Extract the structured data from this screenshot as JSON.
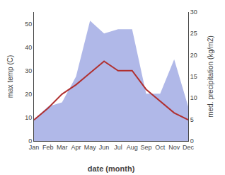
{
  "chart_data": {
    "type": "line",
    "categories": [
      "Jan",
      "Feb",
      "Mar",
      "Apr",
      "May",
      "Jun",
      "Jul",
      "Aug",
      "Sep",
      "Oct",
      "Nov",
      "Dec"
    ],
    "series": [
      {
        "type": "area",
        "color": "#b0b8e8",
        "axis": "y2",
        "values": [
          5,
          8,
          9,
          15,
          28,
          25,
          26,
          26,
          11,
          11,
          19,
          8
        ]
      },
      {
        "type": "line",
        "color": "#b03030",
        "values": [
          9,
          14,
          20,
          24,
          29,
          34,
          30,
          30,
          22,
          17,
          12,
          9
        ]
      }
    ],
    "xlabel": "date (month)",
    "ylabel": "max temp (C)",
    "y2label": "med. precipitation (kg/m2)",
    "ylim": [
      0,
      55
    ],
    "yticks": [
      0,
      10,
      20,
      30,
      40,
      50
    ],
    "y2lim": [
      0,
      30
    ],
    "y2ticks": [
      0,
      5,
      10,
      15,
      20,
      25,
      30
    ],
    "grid": false
  }
}
